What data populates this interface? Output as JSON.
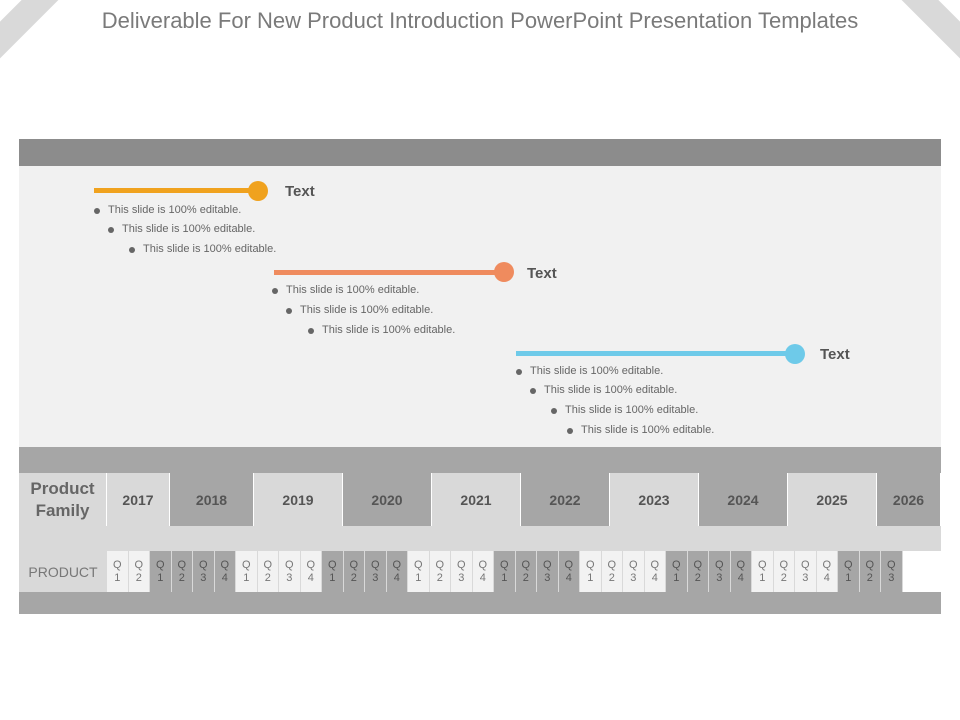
{
  "title": "Deliverable For New Product Introduction PowerPoint Presentation Templates",
  "colors": {
    "orange": "#f0a21e",
    "salmon": "#ef8b5e",
    "blue": "#6ecae9"
  },
  "milestones": [
    {
      "label": "Text",
      "color": "#f0a21e",
      "bullets": [
        "This slide is 100% editable.",
        "This slide is 100% editable.",
        "This slide is 100% editable."
      ]
    },
    {
      "label": "Text",
      "color": "#ef8b5e",
      "bullets": [
        "This slide is 100% editable.",
        "This slide is 100% editable.",
        "This slide is 100% editable."
      ]
    },
    {
      "label": "Text",
      "color": "#6ecae9",
      "bullets": [
        "This slide is 100% editable.",
        "This slide is 100% editable.",
        "This slide is 100% editable.",
        "This slide is 100% editable."
      ]
    }
  ],
  "table": {
    "product_family_line1": "Product",
    "product_family_line2": "Family",
    "years": [
      "2017",
      "2018",
      "2019",
      "2020",
      "2021",
      "2022",
      "2023",
      "2024",
      "2025",
      "2026"
    ],
    "product_label": "PRODUCT",
    "quarters": [
      {
        "l1": "Q",
        "l2": "1"
      },
      {
        "l1": "Q",
        "l2": "2"
      },
      {
        "l1": "Q",
        "l2": "1"
      },
      {
        "l1": "Q",
        "l2": "2"
      },
      {
        "l1": "Q",
        "l2": "3"
      },
      {
        "l1": "Q",
        "l2": "4"
      },
      {
        "l1": "Q",
        "l2": "1"
      },
      {
        "l1": "Q",
        "l2": "2"
      },
      {
        "l1": "Q",
        "l2": "3"
      },
      {
        "l1": "Q",
        "l2": "4"
      },
      {
        "l1": "Q",
        "l2": "1"
      },
      {
        "l1": "Q",
        "l2": "2"
      },
      {
        "l1": "Q",
        "l2": "3"
      },
      {
        "l1": "Q",
        "l2": "4"
      },
      {
        "l1": "Q",
        "l2": "1"
      },
      {
        "l1": "Q",
        "l2": "2"
      },
      {
        "l1": "Q",
        "l2": "3"
      },
      {
        "l1": "Q",
        "l2": "4"
      },
      {
        "l1": "Q",
        "l2": "1"
      },
      {
        "l1": "Q",
        "l2": "2"
      },
      {
        "l1": "Q",
        "l2": "3"
      },
      {
        "l1": "Q",
        "l2": "4"
      },
      {
        "l1": "Q",
        "l2": "1"
      },
      {
        "l1": "Q",
        "l2": "2"
      },
      {
        "l1": "Q",
        "l2": "3"
      },
      {
        "l1": "Q",
        "l2": "4"
      },
      {
        "l1": "Q",
        "l2": "1"
      },
      {
        "l1": "Q",
        "l2": "2"
      },
      {
        "l1": "Q",
        "l2": "3"
      },
      {
        "l1": "Q",
        "l2": "4"
      },
      {
        "l1": "Q",
        "l2": "1"
      },
      {
        "l1": "Q",
        "l2": "2"
      },
      {
        "l1": "Q",
        "l2": "3"
      },
      {
        "l1": "Q",
        "l2": "4"
      },
      {
        "l1": "Q",
        "l2": "1"
      },
      {
        "l1": "Q",
        "l2": "2"
      },
      {
        "l1": "Q",
        "l2": "3"
      }
    ]
  }
}
